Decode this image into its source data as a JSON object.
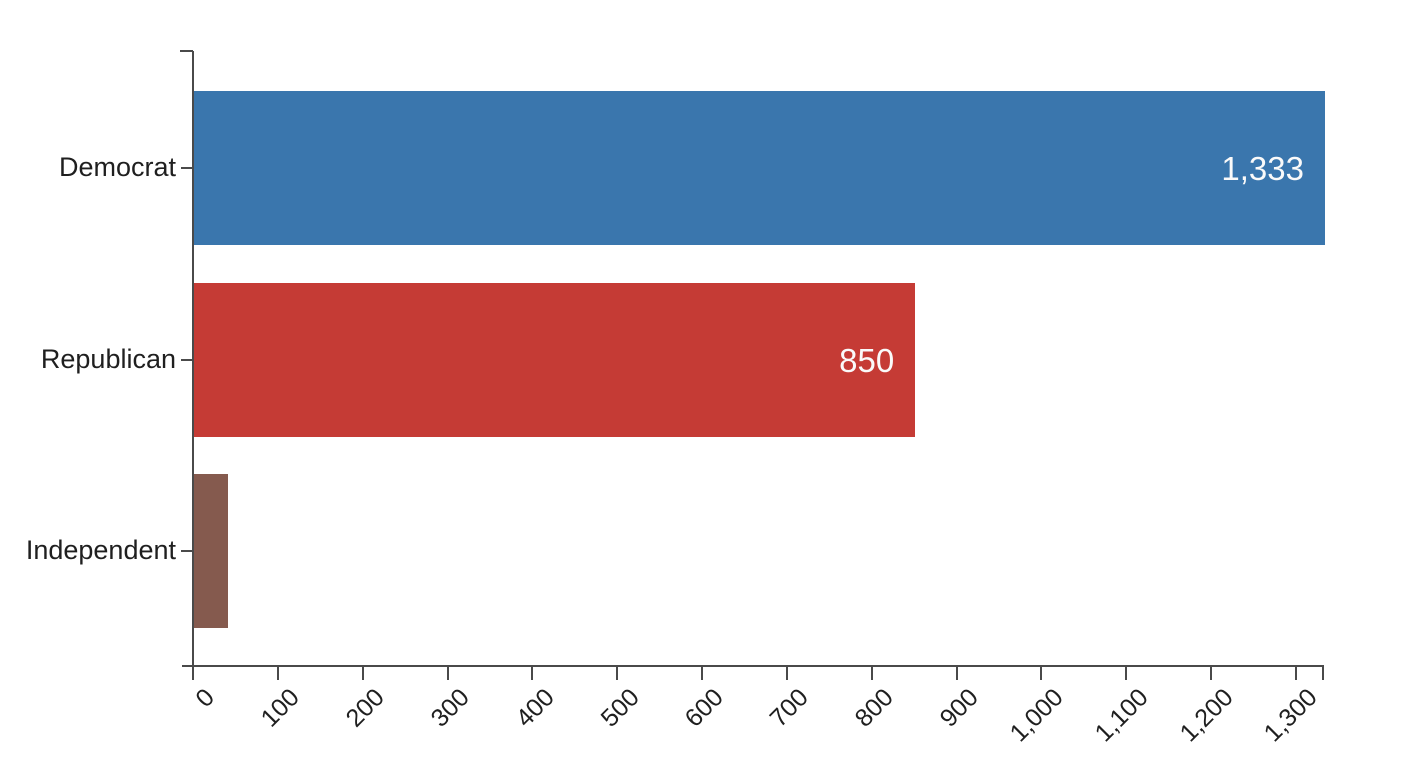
{
  "chart_data": {
    "type": "bar",
    "orientation": "horizontal",
    "title": "",
    "xlabel": "",
    "ylabel": "",
    "categories": [
      "Democrat",
      "Republican",
      "Independent"
    ],
    "values": [
      1333,
      850,
      40
    ],
    "bar_value_labels": [
      "1,333",
      "850",
      ""
    ],
    "bar_colors": [
      "#3a76ad",
      "#c53b35",
      "#855a4e"
    ],
    "xlim": [
      0,
      1333
    ],
    "x_tick_values": [
      0,
      100,
      200,
      300,
      400,
      500,
      600,
      700,
      800,
      900,
      1000,
      1100,
      1200,
      1300
    ],
    "x_tick_labels": [
      "0",
      "100",
      "200",
      "300",
      "400",
      "500",
      "600",
      "700",
      "800",
      "900",
      "1,000",
      "1,100",
      "1,200",
      "1,300"
    ],
    "grid": false,
    "legend_position": "none"
  },
  "colors": {
    "background": "#ffffff",
    "axis": "#4a4a4a",
    "tick_text": "#1f1f1f",
    "category_text": "#1f1f1f",
    "value_text": "#fafafa"
  }
}
